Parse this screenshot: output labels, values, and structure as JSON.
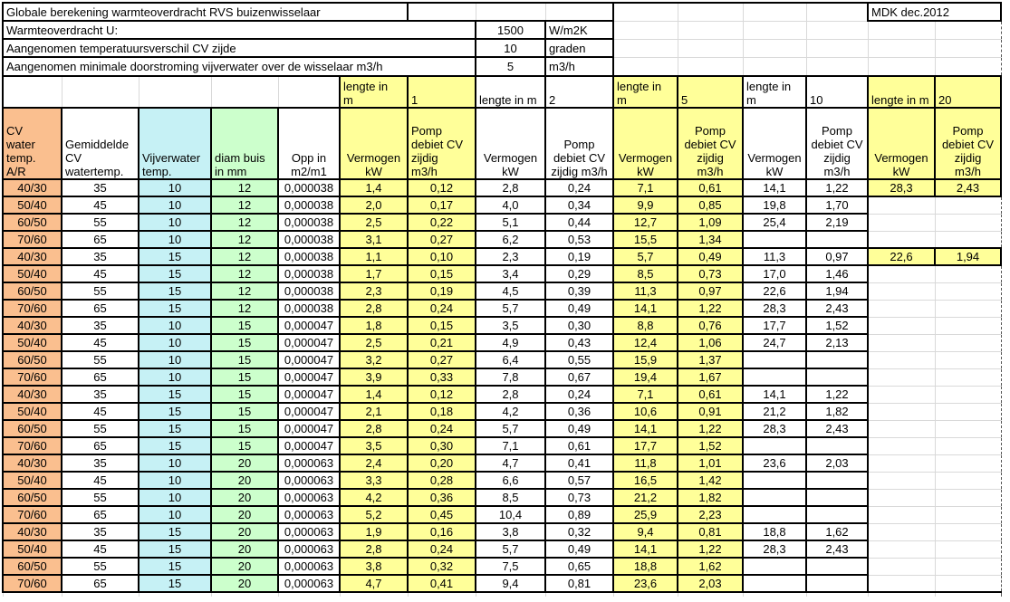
{
  "sheet": {
    "title": "Globale berekening warmteoverdracht RVS buizenwisselaar",
    "stamp": "MDK dec.2012",
    "params": [
      {
        "label": "Warmteoverdracht U:",
        "value": "1500",
        "unit": "W/m2K"
      },
      {
        "label": "Aangenomen temperatuursverschil CV zijde",
        "value": "10",
        "unit": "graden"
      },
      {
        "label": "Aangenomen minimale doorstroming vijverwater over de wisselaar m3/h",
        "value": "5",
        "unit": "m3/h"
      }
    ],
    "columns": [
      {
        "label": "CV\nwater\ntemp.\nA/R"
      },
      {
        "label": "Gemiddelde\nCV\nwatertemp."
      },
      {
        "label": "Vijverwater\ntemp."
      },
      {
        "label": "diam buis\nin mm"
      },
      {
        "label": "Opp in\nm2/m1"
      }
    ],
    "groups": [
      {
        "len_label": "lengte in\nm",
        "len": "1",
        "power": "Vermogen\nkW",
        "pump": "Pomp\ndebiet CV\nzijdig\nm3/h",
        "highlight": true
      },
      {
        "len_label": "lengte in m",
        "len": "2",
        "power": "Vermogen\nkW",
        "pump": "Pomp\ndebiet CV\nzijdig m3/h",
        "highlight": false
      },
      {
        "len_label": "lengte in\nm",
        "len": "5",
        "power": "Vermogen\nkW",
        "pump": "Pomp\ndebiet CV\nzijdig\nm3/h",
        "highlight": true
      },
      {
        "len_label": "lengte in\nm",
        "len": "10",
        "power": "Vermogen\nkW",
        "pump": "Pomp\ndebiet CV\nzijdig\nm3/h",
        "highlight": false
      },
      {
        "len_label": "lengte in m",
        "len": "20",
        "power": "Vermogen\nkW",
        "pump": "Pomp\ndebiet CV\nzijdig\nm3/h",
        "highlight": true
      }
    ],
    "rows": [
      {
        "temp": "40/30",
        "cv": "35",
        "pond": "10",
        "diam": "12",
        "opp": "0,000038",
        "vals": [
          "1,4",
          "0,12",
          "2,8",
          "0,24",
          "7,1",
          "0,61",
          "14,1",
          "1,22",
          "28,3",
          "2,43"
        ]
      },
      {
        "temp": "50/40",
        "cv": "45",
        "pond": "10",
        "diam": "12",
        "opp": "0,000038",
        "vals": [
          "2,0",
          "0,17",
          "4,0",
          "0,34",
          "9,9",
          "0,85",
          "19,8",
          "1,70",
          "",
          ""
        ]
      },
      {
        "temp": "60/50",
        "cv": "55",
        "pond": "10",
        "diam": "12",
        "opp": "0,000038",
        "vals": [
          "2,5",
          "0,22",
          "5,1",
          "0,44",
          "12,7",
          "1,09",
          "25,4",
          "2,19",
          "",
          ""
        ]
      },
      {
        "temp": "70/60",
        "cv": "65",
        "pond": "10",
        "diam": "12",
        "opp": "0,000038",
        "vals": [
          "3,1",
          "0,27",
          "6,2",
          "0,53",
          "15,5",
          "1,34",
          "",
          "",
          "",
          ""
        ]
      },
      {
        "temp": "40/30",
        "cv": "35",
        "pond": "15",
        "diam": "12",
        "opp": "0,000038",
        "vals": [
          "1,1",
          "0,10",
          "2,3",
          "0,19",
          "5,7",
          "0,49",
          "11,3",
          "0,97",
          "22,6",
          "1,94"
        ]
      },
      {
        "temp": "50/40",
        "cv": "45",
        "pond": "15",
        "diam": "12",
        "opp": "0,000038",
        "vals": [
          "1,7",
          "0,15",
          "3,4",
          "0,29",
          "8,5",
          "0,73",
          "17,0",
          "1,46",
          "",
          ""
        ]
      },
      {
        "temp": "60/50",
        "cv": "55",
        "pond": "15",
        "diam": "12",
        "opp": "0,000038",
        "vals": [
          "2,3",
          "0,19",
          "4,5",
          "0,39",
          "11,3",
          "0,97",
          "22,6",
          "1,94",
          "",
          ""
        ]
      },
      {
        "temp": "70/60",
        "cv": "65",
        "pond": "15",
        "diam": "12",
        "opp": "0,000038",
        "vals": [
          "2,8",
          "0,24",
          "5,7",
          "0,49",
          "14,1",
          "1,22",
          "28,3",
          "2,43",
          "",
          ""
        ]
      },
      {
        "temp": "40/30",
        "cv": "35",
        "pond": "10",
        "diam": "15",
        "opp": "0,000047",
        "vals": [
          "1,8",
          "0,15",
          "3,5",
          "0,30",
          "8,8",
          "0,76",
          "17,7",
          "1,52",
          "",
          ""
        ]
      },
      {
        "temp": "50/40",
        "cv": "45",
        "pond": "10",
        "diam": "15",
        "opp": "0,000047",
        "vals": [
          "2,5",
          "0,21",
          "4,9",
          "0,43",
          "12,4",
          "1,06",
          "24,7",
          "2,13",
          "",
          ""
        ]
      },
      {
        "temp": "60/50",
        "cv": "55",
        "pond": "10",
        "diam": "15",
        "opp": "0,000047",
        "vals": [
          "3,2",
          "0,27",
          "6,4",
          "0,55",
          "15,9",
          "1,37",
          "",
          "",
          "",
          ""
        ]
      },
      {
        "temp": "70/60",
        "cv": "65",
        "pond": "10",
        "diam": "15",
        "opp": "0,000047",
        "vals": [
          "3,9",
          "0,33",
          "7,8",
          "0,67",
          "19,4",
          "1,67",
          "",
          "",
          "",
          ""
        ]
      },
      {
        "temp": "40/30",
        "cv": "35",
        "pond": "15",
        "diam": "15",
        "opp": "0,000047",
        "vals": [
          "1,4",
          "0,12",
          "2,8",
          "0,24",
          "7,1",
          "0,61",
          "14,1",
          "1,22",
          "",
          ""
        ]
      },
      {
        "temp": "50/40",
        "cv": "45",
        "pond": "15",
        "diam": "15",
        "opp": "0,000047",
        "vals": [
          "2,1",
          "0,18",
          "4,2",
          "0,36",
          "10,6",
          "0,91",
          "21,2",
          "1,82",
          "",
          ""
        ]
      },
      {
        "temp": "60/50",
        "cv": "55",
        "pond": "15",
        "diam": "15",
        "opp": "0,000047",
        "vals": [
          "2,8",
          "0,24",
          "5,7",
          "0,49",
          "14,1",
          "1,22",
          "28,3",
          "2,43",
          "",
          ""
        ]
      },
      {
        "temp": "70/60",
        "cv": "65",
        "pond": "15",
        "diam": "15",
        "opp": "0,000047",
        "vals": [
          "3,5",
          "0,30",
          "7,1",
          "0,61",
          "17,7",
          "1,52",
          "",
          "",
          "",
          ""
        ]
      },
      {
        "temp": "40/30",
        "cv": "35",
        "pond": "10",
        "diam": "20",
        "opp": "0,000063",
        "vals": [
          "2,4",
          "0,20",
          "4,7",
          "0,41",
          "11,8",
          "1,01",
          "23,6",
          "2,03",
          "",
          ""
        ]
      },
      {
        "temp": "50/40",
        "cv": "45",
        "pond": "10",
        "diam": "20",
        "opp": "0,000063",
        "vals": [
          "3,3",
          "0,28",
          "6,6",
          "0,57",
          "16,5",
          "1,42",
          "",
          "",
          "",
          ""
        ]
      },
      {
        "temp": "60/50",
        "cv": "55",
        "pond": "10",
        "diam": "20",
        "opp": "0,000063",
        "vals": [
          "4,2",
          "0,36",
          "8,5",
          "0,73",
          "21,2",
          "1,82",
          "",
          "",
          "",
          ""
        ]
      },
      {
        "temp": "70/60",
        "cv": "65",
        "pond": "10",
        "diam": "20",
        "opp": "0,000063",
        "vals": [
          "5,2",
          "0,45",
          "10,4",
          "0,89",
          "25,9",
          "2,23",
          "",
          "",
          "",
          ""
        ]
      },
      {
        "temp": "40/30",
        "cv": "35",
        "pond": "15",
        "diam": "20",
        "opp": "0,000063",
        "vals": [
          "1,9",
          "0,16",
          "3,8",
          "0,32",
          "9,4",
          "0,81",
          "18,8",
          "1,62",
          "",
          ""
        ]
      },
      {
        "temp": "50/40",
        "cv": "45",
        "pond": "15",
        "diam": "20",
        "opp": "0,000063",
        "vals": [
          "2,8",
          "0,24",
          "5,7",
          "0,49",
          "14,1",
          "1,22",
          "28,3",
          "2,43",
          "",
          ""
        ]
      },
      {
        "temp": "60/50",
        "cv": "55",
        "pond": "15",
        "diam": "20",
        "opp": "0,000063",
        "vals": [
          "3,8",
          "0,32",
          "7,5",
          "0,65",
          "18,8",
          "1,62",
          "",
          "",
          "",
          ""
        ]
      },
      {
        "temp": "70/60",
        "cv": "65",
        "pond": "15",
        "diam": "20",
        "opp": "0,000063",
        "vals": [
          "4,7",
          "0,41",
          "9,4",
          "0,81",
          "23,6",
          "2,03",
          "",
          "",
          "",
          ""
        ]
      }
    ],
    "colors": {
      "orange": "#FABF8F",
      "cyan": "#C6F1F5",
      "green": "#CCFFCC",
      "yellow": "#FFFF99",
      "gridline": "#D9D9D9",
      "border": "#000000"
    }
  }
}
